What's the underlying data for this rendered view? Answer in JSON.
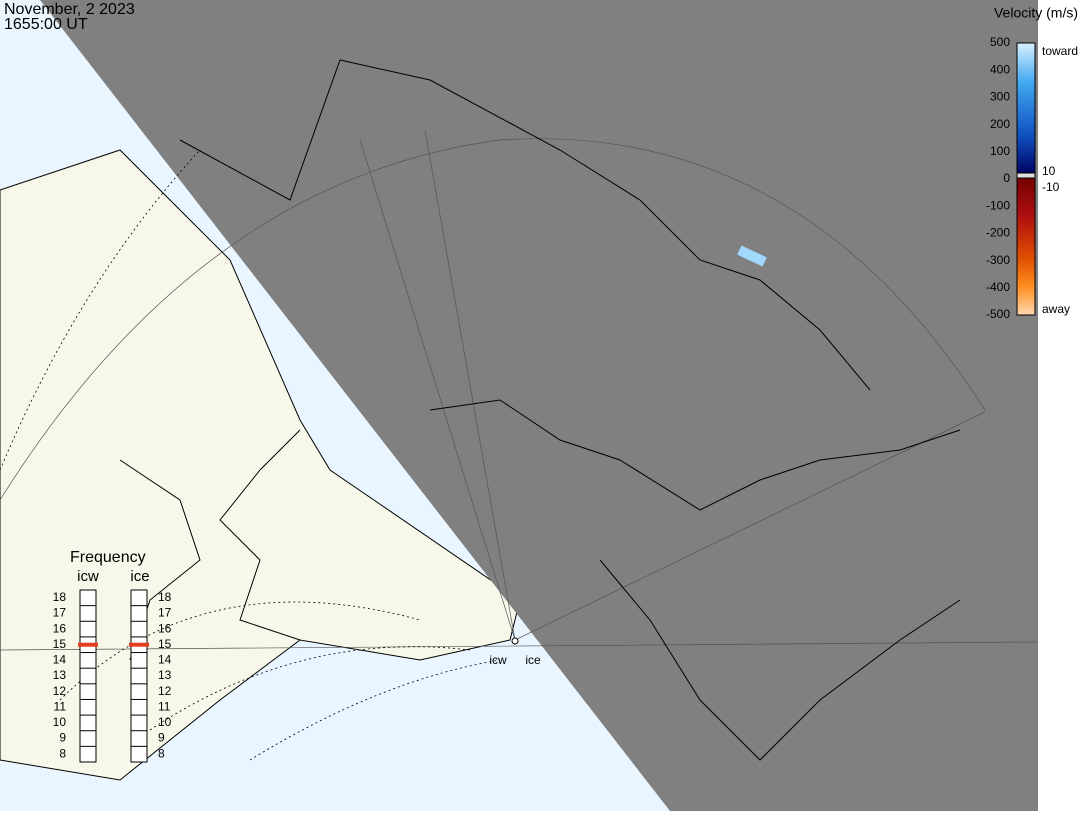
{
  "header": {
    "date": "November, 2 2023",
    "time": "1655:00 UT"
  },
  "velocity_scale": {
    "title": "Velocity (m/s)",
    "ticks": [
      500,
      400,
      300,
      200,
      100,
      0,
      -100,
      -200,
      -300,
      -400,
      -500
    ],
    "near_zero": [
      10,
      -10
    ],
    "toward": "toward",
    "away": "away"
  },
  "frequency": {
    "title": "Frequency",
    "ticks": [
      8,
      9,
      10,
      11,
      12,
      13,
      14,
      15,
      16,
      17,
      18
    ],
    "radars": [
      {
        "name": "icw",
        "mhz": 15
      },
      {
        "name": "ice",
        "mhz": 15
      }
    ]
  },
  "sites": [
    "icw",
    "ice"
  ]
}
